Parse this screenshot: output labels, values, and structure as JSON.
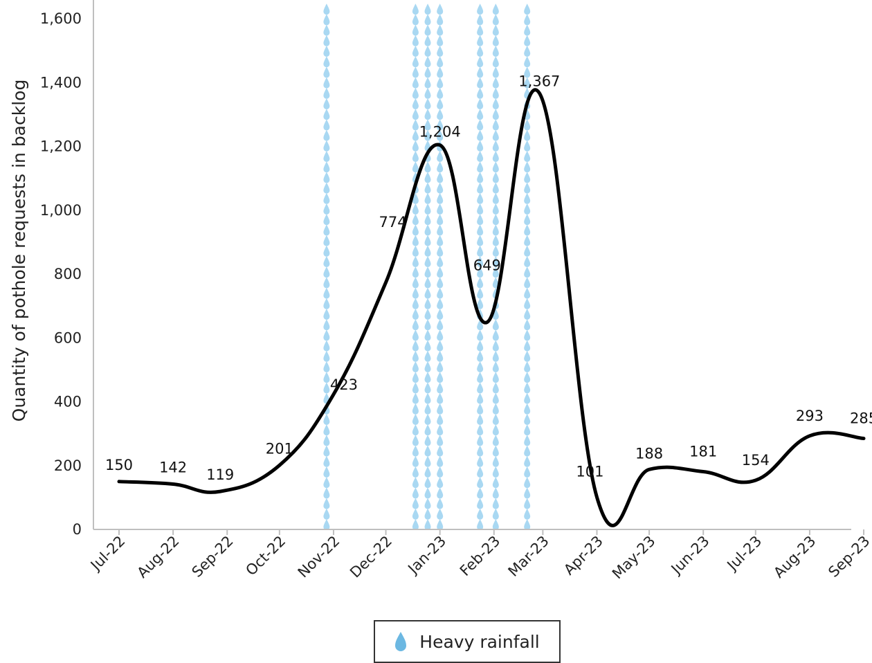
{
  "chart_data": {
    "type": "line",
    "ylabel": "Quantity of pothole requests in backlog",
    "xlabel": "",
    "ylim": [
      0,
      1600
    ],
    "yticks": [
      "0",
      "200",
      "400",
      "600",
      "800",
      "1,000",
      "1,200",
      "1,400",
      "1,600"
    ],
    "categories": [
      "Jul-22",
      "Aug-22",
      "Sep-22",
      "Oct-22",
      "Nov-22",
      "Dec-22",
      "Jan-23",
      "Feb-23",
      "Mar-23",
      "Apr-23",
      "May-23",
      "Jun-23",
      "Jul-23",
      "Aug-23",
      "Sep-23"
    ],
    "series": [
      {
        "values": [
          150,
          142,
          119,
          201,
          423,
          774,
          1204,
          649,
          1367,
          101,
          188,
          181,
          154,
          293,
          285
        ],
        "labels": [
          "150",
          "142",
          "119",
          "201",
          "423",
          "774",
          "1,204",
          "649",
          "1,367",
          "101",
          "188",
          "181",
          "154",
          "293",
          "285"
        ],
        "color": "#000000"
      }
    ],
    "rainfall_dates": [
      "2022-10-28",
      "2022-12-18",
      "2022-12-25",
      "2023-01-01",
      "2023-01-24",
      "2023-02-02",
      "2023-02-20"
    ],
    "rainfall_color": "#a9d8f2",
    "legend": {
      "label": "Heavy rainfall",
      "icon": "raindrop-icon",
      "position": "bottom-center"
    },
    "grid": false
  }
}
